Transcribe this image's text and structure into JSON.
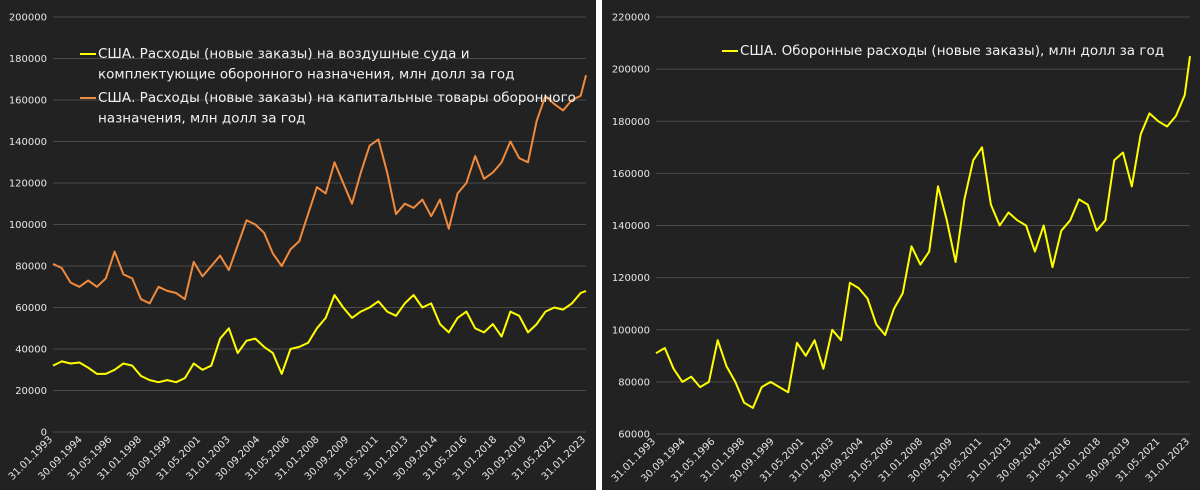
{
  "chart_data": [
    {
      "type": "line",
      "ylim": [
        0,
        200000
      ],
      "yticks": [
        "0",
        "20000",
        "40000",
        "60000",
        "80000",
        "100000",
        "120000",
        "140000",
        "160000",
        "180000",
        "200000"
      ],
      "xtick_labels": [
        "31.01.1993",
        "30.09.1994",
        "31.05.1996",
        "31.01.1998",
        "30.09.1999",
        "31.05.2001",
        "31.01.2003",
        "30.09.2004",
        "31.05.2006",
        "31.01.2008",
        "30.09.2009",
        "31.05.2011",
        "31.01.2013",
        "30.09.2014",
        "31.05.2016",
        "31.01.2018",
        "30.09.2019",
        "31.05.2021",
        "31.01.2023"
      ],
      "grid": "horizontal",
      "legend_position": "top-left",
      "series": [
        {
          "name_lines": [
            "США. Расходы (новые заказы) на воздушные суда и",
            "комплектующие оборонного назначения, млн долл за год"
          ],
          "color": "#ffff00",
          "x": [
            1993.0,
            1993.5,
            1994.0,
            1994.5,
            1995.0,
            1995.5,
            1996.0,
            1996.5,
            1997.0,
            1997.5,
            1998.0,
            1998.5,
            1999.0,
            1999.5,
            2000.0,
            2000.5,
            2001.0,
            2001.5,
            2002.0,
            2002.5,
            2003.0,
            2003.5,
            2004.0,
            2004.5,
            2005.0,
            2005.5,
            2006.0,
            2006.5,
            2007.0,
            2007.5,
            2008.0,
            2008.5,
            2009.0,
            2009.5,
            2010.0,
            2010.5,
            2011.0,
            2011.5,
            2012.0,
            2012.5,
            2013.0,
            2013.5,
            2014.0,
            2014.5,
            2015.0,
            2015.5,
            2016.0,
            2016.5,
            2017.0,
            2017.5,
            2018.0,
            2018.5,
            2019.0,
            2019.5,
            2020.0,
            2020.5,
            2021.0,
            2021.5,
            2022.0,
            2022.5,
            2023.0,
            2023.3
          ],
          "values": [
            32000,
            34000,
            33000,
            33500,
            31000,
            28000,
            28000,
            30000,
            33000,
            32000,
            27000,
            25000,
            24000,
            25000,
            24000,
            26000,
            33000,
            30000,
            32000,
            45000,
            50000,
            38000,
            44000,
            45000,
            41000,
            38000,
            28000,
            40000,
            41000,
            43000,
            50000,
            55000,
            66000,
            60000,
            55000,
            58000,
            60000,
            63000,
            58000,
            56000,
            62000,
            66000,
            60000,
            62000,
            52000,
            48000,
            55000,
            58000,
            50000,
            48000,
            52000,
            46000,
            58000,
            56000,
            48000,
            52000,
            58000,
            60000,
            59000,
            62000,
            67000,
            68000
          ]
        },
        {
          "name_lines": [
            "США. Расходы (новые заказы) на капитальные товары оборонного",
            "назначения, млн долл за год"
          ],
          "color": "#f08a3c",
          "x": [
            1993.0,
            1993.5,
            1994.0,
            1994.5,
            1995.0,
            1995.5,
            1996.0,
            1996.5,
            1997.0,
            1997.5,
            1998.0,
            1998.5,
            1999.0,
            1999.5,
            2000.0,
            2000.5,
            2001.0,
            2001.5,
            2002.0,
            2002.5,
            2003.0,
            2003.5,
            2004.0,
            2004.5,
            2005.0,
            2005.5,
            2006.0,
            2006.5,
            2007.0,
            2007.5,
            2008.0,
            2008.5,
            2009.0,
            2009.5,
            2010.0,
            2010.5,
            2011.0,
            2011.5,
            2012.0,
            2012.5,
            2013.0,
            2013.5,
            2014.0,
            2014.5,
            2015.0,
            2015.5,
            2016.0,
            2016.5,
            2017.0,
            2017.5,
            2018.0,
            2018.5,
            2019.0,
            2019.5,
            2020.0,
            2020.5,
            2021.0,
            2021.5,
            2022.0,
            2022.5,
            2023.0,
            2023.3
          ],
          "values": [
            81000,
            79000,
            72000,
            70000,
            73000,
            70000,
            74000,
            87000,
            76000,
            74000,
            64000,
            62000,
            70000,
            68000,
            67000,
            64000,
            82000,
            75000,
            80000,
            85000,
            78000,
            90000,
            102000,
            100000,
            96000,
            86000,
            80000,
            88000,
            92000,
            105000,
            118000,
            115000,
            130000,
            120000,
            110000,
            125000,
            138000,
            141000,
            125000,
            105000,
            110000,
            108000,
            112000,
            104000,
            112000,
            98000,
            115000,
            120000,
            133000,
            122000,
            125000,
            130000,
            140000,
            132000,
            130000,
            150000,
            162000,
            158000,
            155000,
            160000,
            162000,
            172000
          ]
        }
      ]
    },
    {
      "type": "line",
      "ylim": [
        60000,
        220000
      ],
      "yticks": [
        "60000",
        "80000",
        "100000",
        "120000",
        "140000",
        "160000",
        "180000",
        "200000",
        "220000"
      ],
      "xtick_labels": [
        "31.01.1993",
        "30.09.1994",
        "31.05.1996",
        "31.01.1998",
        "30.09.1999",
        "31.05.2001",
        "31.01.2003",
        "30.09.2004",
        "31.05.2006",
        "31.01.2008",
        "30.09.2009",
        "31.05.2011",
        "31.01.2013",
        "30.09.2014",
        "31.05.2016",
        "31.01.2018",
        "30.09.2019",
        "31.05.2021",
        "31.01.2023"
      ],
      "grid": "horizontal",
      "legend_position": "top-center",
      "series": [
        {
          "name_lines": [
            "США. Оборонные расходы (новые заказы), млн долл за год"
          ],
          "color": "#ffff00",
          "x": [
            1993.0,
            1993.5,
            1994.0,
            1994.5,
            1995.0,
            1995.5,
            1996.0,
            1996.5,
            1997.0,
            1997.5,
            1998.0,
            1998.5,
            1999.0,
            1999.5,
            2000.0,
            2000.5,
            2001.0,
            2001.5,
            2002.0,
            2002.5,
            2003.0,
            2003.5,
            2004.0,
            2004.5,
            2005.0,
            2005.5,
            2006.0,
            2006.5,
            2007.0,
            2007.5,
            2008.0,
            2008.5,
            2009.0,
            2009.5,
            2010.0,
            2010.5,
            2011.0,
            2011.5,
            2012.0,
            2012.5,
            2013.0,
            2013.5,
            2014.0,
            2014.5,
            2015.0,
            2015.5,
            2016.0,
            2016.5,
            2017.0,
            2017.5,
            2018.0,
            2018.5,
            2019.0,
            2019.5,
            2020.0,
            2020.5,
            2021.0,
            2021.5,
            2022.0,
            2022.5,
            2023.0,
            2023.3
          ],
          "values": [
            91000,
            93000,
            85000,
            80000,
            82000,
            78000,
            80000,
            96000,
            86000,
            80000,
            72000,
            70000,
            78000,
            80000,
            78000,
            76000,
            95000,
            90000,
            96000,
            85000,
            100000,
            96000,
            118000,
            116000,
            112000,
            102000,
            98000,
            108000,
            114000,
            132000,
            125000,
            130000,
            155000,
            142000,
            126000,
            150000,
            165000,
            170000,
            148000,
            140000,
            145000,
            142000,
            140000,
            130000,
            140000,
            124000,
            138000,
            142000,
            150000,
            148000,
            138000,
            142000,
            165000,
            168000,
            155000,
            175000,
            183000,
            180000,
            178000,
            182000,
            190000,
            205000
          ]
        }
      ]
    }
  ]
}
